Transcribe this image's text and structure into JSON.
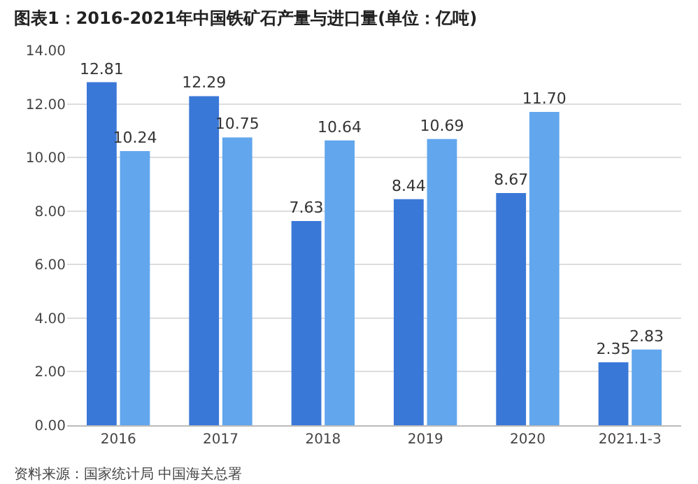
{
  "chart_data": {
    "type": "bar",
    "title": "图表1：2016-2021年中国铁矿石产量与进口量(单位：亿吨)",
    "categories": [
      "2016",
      "2017",
      "2018",
      "2019",
      "2020",
      "2021.1-3"
    ],
    "series": [
      {
        "color": "#3a78d8",
        "values": [
          12.81,
          12.29,
          7.63,
          8.44,
          8.67,
          2.35
        ],
        "value_labels": [
          "12.81",
          "12.29",
          "7.63",
          "8.44",
          "8.67",
          "2.35"
        ]
      },
      {
        "color": "#62a6ee",
        "values": [
          10.24,
          10.75,
          10.64,
          10.69,
          11.7,
          2.83
        ],
        "value_labels": [
          "10.24",
          "10.75",
          "10.64",
          "10.69",
          "11.70",
          "2.83"
        ]
      }
    ],
    "ylim": [
      0,
      14
    ],
    "yticks": [
      {
        "value": 0,
        "label": "0.00"
      },
      {
        "value": 2,
        "label": "2.00"
      },
      {
        "value": 4,
        "label": "4.00"
      },
      {
        "value": 6,
        "label": "6.00"
      },
      {
        "value": 8,
        "label": "8.00"
      },
      {
        "value": 10,
        "label": "10.00"
      },
      {
        "value": 12,
        "label": "12.00"
      },
      {
        "value": 14,
        "label": "14.00"
      }
    ],
    "grid": "y",
    "annotations": [
      "资料来源：国家统计局 中国海关总署"
    ]
  }
}
